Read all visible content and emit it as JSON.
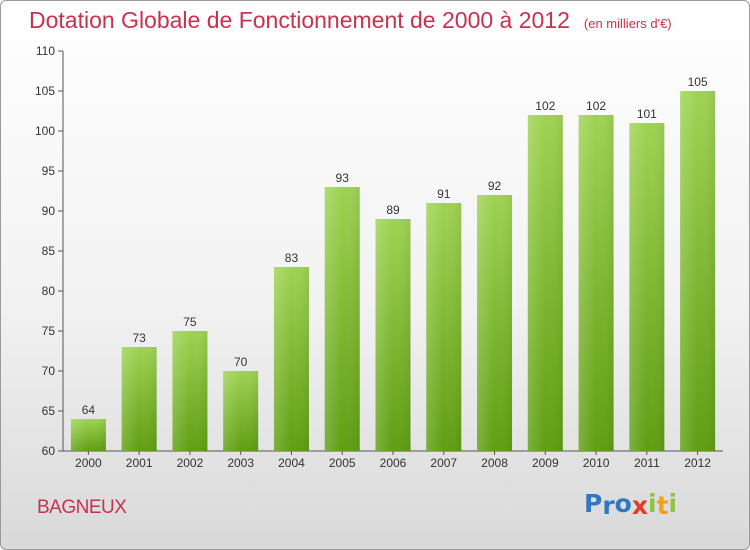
{
  "title": "Dotation Globale de Fonctionnement de 2000 à 2012",
  "unit_note": "(en milliers d'€)",
  "city": "BAGNEUX",
  "logo": {
    "letters": [
      "P",
      "r",
      "o",
      "x",
      "i",
      "t",
      "i"
    ],
    "colors": [
      "#2f77c3",
      "#2f77c3",
      "#2f77c3",
      "#e03c2a",
      "#8cc63f",
      "#f6a01a",
      "#8cc63f"
    ]
  },
  "colors": {
    "bar_top": "#9fd353",
    "bar_bottom": "#5f9e12",
    "axis": "#555555",
    "title": "#c8324f"
  },
  "chart_data": {
    "type": "bar",
    "title": "Dotation Globale de Fonctionnement de 2000 à 2012",
    "subtitle": "(en milliers d'€)",
    "categories": [
      "2000",
      "2001",
      "2002",
      "2003",
      "2004",
      "2005",
      "2006",
      "2007",
      "2008",
      "2009",
      "2010",
      "2011",
      "2012"
    ],
    "values": [
      64,
      73,
      75,
      70,
      83,
      93,
      89,
      91,
      92,
      102,
      102,
      101,
      105
    ],
    "ylim": [
      60,
      110
    ],
    "yticks": [
      60,
      65,
      70,
      75,
      80,
      85,
      90,
      95,
      100,
      105,
      110
    ],
    "grid": false,
    "xlabel": "",
    "ylabel": ""
  }
}
